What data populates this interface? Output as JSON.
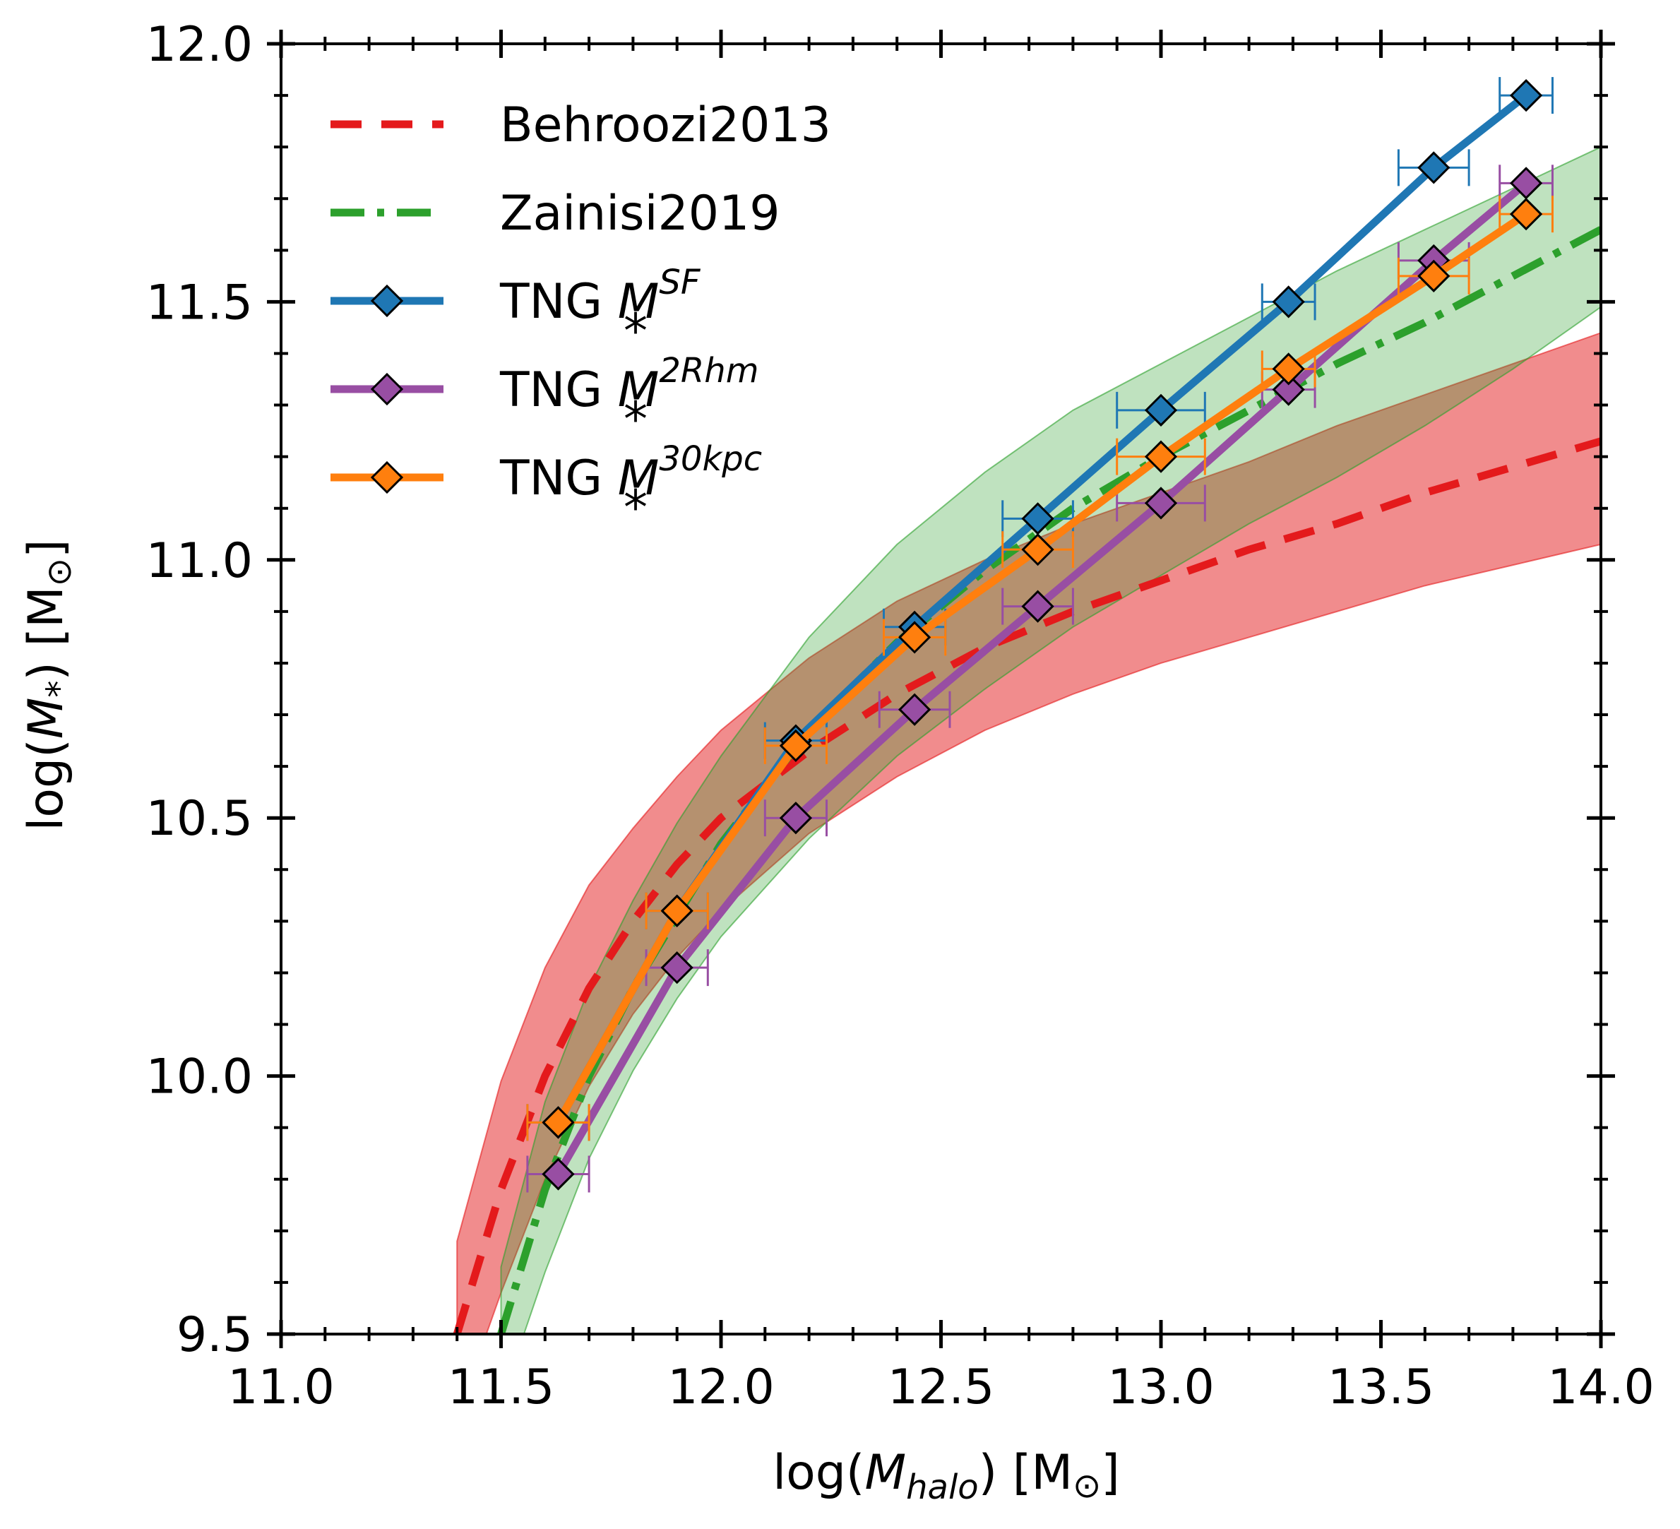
{
  "chart_data": {
    "type": "line",
    "xlabel": "log(M_halo) [M☉]",
    "ylabel": "log(M*) [M☉]",
    "xlim": [
      11.0,
      14.0
    ],
    "ylim": [
      9.5,
      12.0
    ],
    "x_ticks": [
      11.0,
      11.5,
      12.0,
      12.5,
      13.0,
      13.5,
      14.0
    ],
    "y_ticks": [
      9.5,
      10.0,
      10.5,
      11.0,
      11.5,
      12.0
    ],
    "x_tick_labels": [
      "11.0",
      "11.5",
      "12.0",
      "12.5",
      "13.0",
      "13.5",
      "14.0"
    ],
    "y_tick_labels": [
      "9.5",
      "10.0",
      "10.5",
      "11.0",
      "11.5",
      "12.0"
    ],
    "minor_tick_step": 0.1,
    "grid": false,
    "legend_position": "top-left",
    "series": [
      {
        "name": "Behroozi2013",
        "style": "dashed",
        "color": "#e41a1c",
        "x": [
          11.4,
          11.5,
          11.6,
          11.7,
          11.8,
          11.9,
          12.0,
          12.2,
          12.4,
          12.6,
          12.8,
          13.0,
          13.2,
          13.4,
          13.6,
          13.8,
          14.0
        ],
        "y": [
          9.5,
          9.78,
          10.0,
          10.17,
          10.3,
          10.41,
          10.5,
          10.63,
          10.74,
          10.83,
          10.9,
          10.96,
          11.02,
          11.07,
          11.13,
          11.18,
          11.23
        ],
        "band_lower": [
          9.34,
          9.58,
          9.8,
          9.98,
          10.12,
          10.23,
          10.32,
          10.47,
          10.58,
          10.67,
          10.74,
          10.8,
          10.85,
          10.9,
          10.95,
          10.99,
          11.03
        ],
        "band_upper": [
          9.68,
          9.99,
          10.21,
          10.37,
          10.48,
          10.58,
          10.67,
          10.81,
          10.92,
          11.0,
          11.07,
          11.13,
          11.19,
          11.26,
          11.32,
          11.38,
          11.44
        ],
        "band_color": "#e41a1c"
      },
      {
        "name": "Zainisi2019",
        "style": "dashdot",
        "color": "#2ca02c",
        "x": [
          11.5,
          11.6,
          11.7,
          11.8,
          11.9,
          12.0,
          12.2,
          12.4,
          12.6,
          12.8,
          13.0,
          13.2,
          13.4,
          13.6,
          13.8,
          14.0
        ],
        "y": [
          9.5,
          9.78,
          10.0,
          10.17,
          10.31,
          10.45,
          10.67,
          10.84,
          10.98,
          11.1,
          11.2,
          11.29,
          11.38,
          11.46,
          11.55,
          11.64
        ],
        "band_lower": [
          9.37,
          9.62,
          9.84,
          10.01,
          10.15,
          10.27,
          10.46,
          10.62,
          10.75,
          10.87,
          10.97,
          11.07,
          11.16,
          11.26,
          11.37,
          11.49
        ],
        "band_upper": [
          9.63,
          9.95,
          10.17,
          10.34,
          10.49,
          10.62,
          10.85,
          11.03,
          11.17,
          11.29,
          11.38,
          11.47,
          11.56,
          11.64,
          11.72,
          11.8
        ],
        "band_color": "#2ca02c"
      },
      {
        "name": "TNG M*^SF",
        "style": "solid-diamond",
        "color": "#1f77b4",
        "x": [
          11.63,
          11.9,
          12.17,
          12.44,
          12.72,
          13.0,
          13.29,
          13.62,
          13.83
        ],
        "y": [
          9.91,
          10.32,
          10.65,
          10.87,
          11.08,
          11.29,
          11.5,
          11.76,
          11.9
        ],
        "xerr": [
          0.07,
          0.07,
          0.07,
          0.07,
          0.08,
          0.1,
          0.06,
          0.08,
          0.06
        ]
      },
      {
        "name": "TNG M*^2Rhm",
        "style": "solid-diamond",
        "color": "#984ea3",
        "x": [
          11.63,
          11.9,
          12.17,
          12.44,
          12.72,
          13.0,
          13.29,
          13.62,
          13.83
        ],
        "y": [
          9.81,
          10.21,
          10.5,
          10.71,
          10.91,
          11.11,
          11.33,
          11.58,
          11.73
        ],
        "xerr": [
          0.07,
          0.07,
          0.07,
          0.08,
          0.08,
          0.1,
          0.06,
          0.08,
          0.06
        ]
      },
      {
        "name": "TNG M*^30kpc",
        "style": "solid-diamond",
        "color": "#ff7f0e",
        "x": [
          11.63,
          11.9,
          12.17,
          12.44,
          12.72,
          13.0,
          13.29,
          13.62,
          13.83
        ],
        "y": [
          9.91,
          10.32,
          10.64,
          10.85,
          11.02,
          11.2,
          11.37,
          11.55,
          11.67
        ],
        "xerr": [
          0.07,
          0.07,
          0.07,
          0.07,
          0.08,
          0.1,
          0.06,
          0.08,
          0.06
        ]
      }
    ],
    "legend": [
      {
        "name": "Behroozi2013",
        "text": "Behroozi2013",
        "sup": ""
      },
      {
        "name": "Zainisi2019",
        "text": "Zainisi2019",
        "sup": ""
      },
      {
        "name": "TNG M*^SF",
        "text": "TNG ",
        "sup": "SF"
      },
      {
        "name": "TNG M*^2Rhm",
        "text": "TNG ",
        "sup": "2Rhm"
      },
      {
        "name": "TNG M*^30kpc",
        "text": "TNG ",
        "sup": "30kpc"
      }
    ]
  }
}
